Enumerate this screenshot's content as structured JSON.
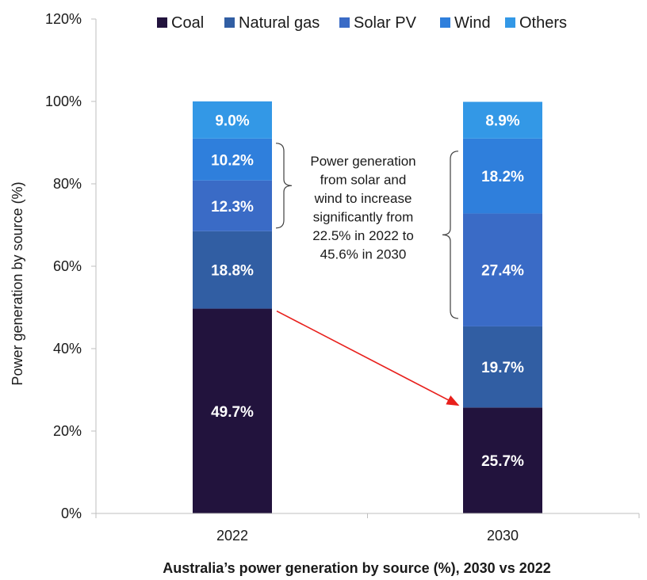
{
  "chart_data": {
    "type": "bar",
    "stacked": true,
    "categories": [
      "2022",
      "2030"
    ],
    "series": [
      {
        "name": "Coal",
        "values": [
          49.7,
          25.7
        ],
        "color": "#22133d"
      },
      {
        "name": "Natural gas",
        "values": [
          18.8,
          19.7
        ],
        "color": "#315ea3"
      },
      {
        "name": "Solar PV",
        "values": [
          12.3,
          27.4
        ],
        "color": "#3a6bc6"
      },
      {
        "name": "Wind",
        "values": [
          10.2,
          18.2
        ],
        "color": "#2f7fdc"
      },
      {
        "name": "Others",
        "values": [
          9.0,
          8.9
        ],
        "color": "#3398e6"
      }
    ],
    "data_labels": [
      [
        "49.7%",
        "18.8%",
        "12.3%",
        "10.2%",
        "9.0%"
      ],
      [
        "25.7%",
        "19.7%",
        "27.4%",
        "18.2%",
        "8.9%"
      ]
    ],
    "y_ticks": [
      "0%",
      "20%",
      "40%",
      "60%",
      "80%",
      "100%",
      "120%"
    ],
    "ylim": [
      0,
      120
    ],
    "ylabel": "Power generation by source (%)",
    "xlabel": "Australia’s power generation by source (%), 2030 vs 2022",
    "legend_position": "top",
    "annotation": {
      "lines": [
        "Power generation",
        "from solar and",
        "wind to increase",
        "significantly  from",
        "22.5% in 2022 to",
        "45.6% in 2030"
      ]
    },
    "arrow_color": "#e8201c",
    "grid": false
  }
}
